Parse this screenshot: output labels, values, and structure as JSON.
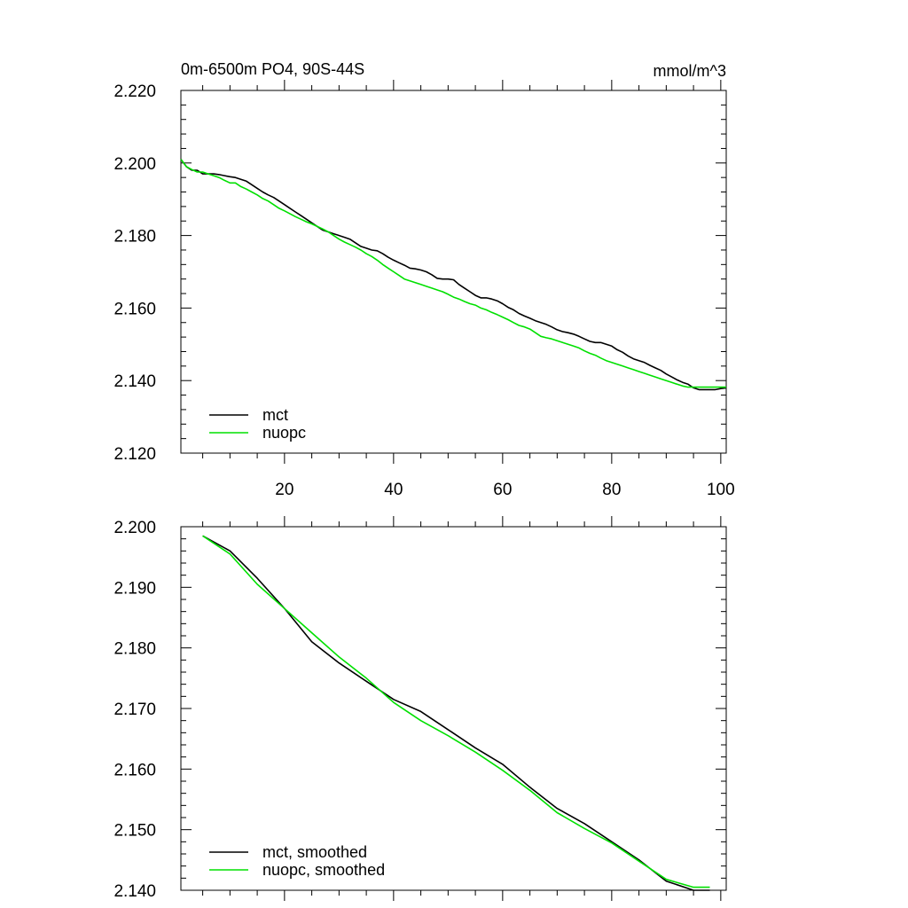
{
  "chart_data": [
    {
      "type": "line",
      "title": "0m-6500m PO4, 90S-44S",
      "units": "mmol/m^3",
      "xlabel": "",
      "ylabel": "",
      "xlim": [
        1,
        101
      ],
      "ylim": [
        2.12,
        2.22
      ],
      "xticks": [
        20,
        40,
        60,
        80,
        100
      ],
      "xtick_labels": [
        "20",
        "40",
        "60",
        "80",
        "100"
      ],
      "yticks": [
        2.12,
        2.14,
        2.16,
        2.18,
        2.2,
        2.22
      ],
      "ytick_labels": [
        "2.120",
        "2.140",
        "2.160",
        "2.180",
        "2.200",
        "2.220"
      ],
      "legend_position": "bottom-left",
      "series": [
        {
          "name": "mct",
          "color": "#000000",
          "x": [
            1,
            2,
            3,
            4,
            5,
            6,
            7,
            8,
            9,
            10,
            11,
            12,
            13,
            14,
            15,
            16,
            17,
            18,
            19,
            20,
            21,
            22,
            23,
            24,
            25,
            26,
            27,
            28,
            29,
            30,
            31,
            32,
            33,
            34,
            35,
            36,
            37,
            38,
            39,
            40,
            41,
            42,
            43,
            44,
            45,
            46,
            47,
            48,
            49,
            50,
            51,
            52,
            53,
            54,
            55,
            56,
            57,
            58,
            59,
            60,
            61,
            62,
            63,
            64,
            65,
            66,
            67,
            68,
            69,
            70,
            71,
            72,
            73,
            74,
            75,
            76,
            77,
            78,
            79,
            80,
            81,
            82,
            83,
            84,
            85,
            86,
            87,
            88,
            89,
            90,
            91,
            92,
            93,
            94,
            95,
            96,
            97,
            98,
            99,
            100,
            101
          ],
          "values": [
            2.201,
            2.199,
            2.198,
            2.198,
            2.197,
            2.197,
            2.197,
            2.1968,
            2.1965,
            2.1962,
            2.196,
            2.1955,
            2.195,
            2.194,
            2.193,
            2.192,
            2.1912,
            2.1905,
            2.1895,
            2.1885,
            2.1875,
            2.1865,
            2.1855,
            2.1845,
            2.1835,
            2.1825,
            2.1815,
            2.181,
            2.1805,
            2.18,
            2.1795,
            2.179,
            2.178,
            2.177,
            2.1765,
            2.176,
            2.1758,
            2.175,
            2.174,
            2.1732,
            2.1725,
            2.1718,
            2.171,
            2.1708,
            2.1705,
            2.17,
            2.1692,
            2.1682,
            2.168,
            2.168,
            2.1678,
            2.1665,
            2.1655,
            2.1645,
            2.1635,
            2.1628,
            2.1628,
            2.1625,
            2.162,
            2.1612,
            2.1602,
            2.1595,
            2.1585,
            2.1578,
            2.1572,
            2.1565,
            2.156,
            2.1555,
            2.1548,
            2.154,
            2.1535,
            2.1532,
            2.1528,
            2.1522,
            2.1515,
            2.1508,
            2.1505,
            2.1505,
            2.15,
            2.1495,
            2.1485,
            2.1478,
            2.1468,
            2.146,
            2.1455,
            2.145,
            2.1442,
            2.1435,
            2.1428,
            2.1418,
            2.141,
            2.1402,
            2.1395,
            2.139,
            2.138,
            2.1375,
            2.1375,
            2.1375,
            2.1375,
            2.1378,
            2.138
          ]
        },
        {
          "name": "nuopc",
          "color": "#00e000",
          "x": [
            1,
            2,
            3,
            4,
            5,
            6,
            7,
            8,
            9,
            10,
            11,
            12,
            13,
            14,
            15,
            16,
            17,
            18,
            19,
            20,
            21,
            22,
            23,
            24,
            25,
            26,
            27,
            28,
            29,
            30,
            31,
            32,
            33,
            34,
            35,
            36,
            37,
            38,
            39,
            40,
            41,
            42,
            43,
            44,
            45,
            46,
            47,
            48,
            49,
            50,
            51,
            52,
            53,
            54,
            55,
            56,
            57,
            58,
            59,
            60,
            61,
            62,
            63,
            64,
            65,
            66,
            67,
            68,
            69,
            70,
            71,
            72,
            73,
            74,
            75,
            76,
            77,
            78,
            79,
            80,
            81,
            82,
            83,
            84,
            85,
            86,
            87,
            88,
            89,
            90,
            91,
            92,
            93,
            94,
            95,
            96,
            97,
            98,
            99,
            100,
            101
          ],
          "values": [
            2.201,
            2.199,
            2.1982,
            2.1975,
            2.1975,
            2.197,
            2.1965,
            2.196,
            2.1952,
            2.1945,
            2.1945,
            2.1935,
            2.1928,
            2.192,
            2.1912,
            2.1902,
            2.1895,
            2.1885,
            2.1875,
            2.1868,
            2.186,
            2.1852,
            2.1845,
            2.1838,
            2.1832,
            2.1825,
            2.1818,
            2.181,
            2.18,
            2.179,
            2.1782,
            2.1775,
            2.1768,
            2.176,
            2.175,
            2.1742,
            2.1732,
            2.172,
            2.171,
            2.17,
            2.169,
            2.168,
            2.1675,
            2.167,
            2.1665,
            2.166,
            2.1655,
            2.165,
            2.1645,
            2.1638,
            2.163,
            2.1625,
            2.1618,
            2.1612,
            2.1608,
            2.16,
            2.1595,
            2.1588,
            2.1582,
            2.1575,
            2.1568,
            2.156,
            2.1552,
            2.1548,
            2.1542,
            2.1532,
            2.1522,
            2.1518,
            2.1515,
            2.151,
            2.1505,
            2.15,
            2.1495,
            2.149,
            2.1482,
            2.1475,
            2.147,
            2.1462,
            2.1455,
            2.145,
            2.1445,
            2.144,
            2.1435,
            2.143,
            2.1425,
            2.142,
            2.1415,
            2.141,
            2.1405,
            2.14,
            2.1395,
            2.139,
            2.1385,
            2.1382,
            2.1382,
            2.1382,
            2.1382,
            2.1382,
            2.1382,
            2.1382,
            2.1382
          ]
        }
      ]
    },
    {
      "type": "line",
      "title": "",
      "xlabel": "",
      "ylabel": "",
      "xlim": [
        1,
        101
      ],
      "ylim": [
        2.14,
        2.2
      ],
      "xticks": [
        20,
        40,
        60,
        80,
        100
      ],
      "xtick_labels": [
        "",
        "",
        "",
        "",
        ""
      ],
      "yticks": [
        2.14,
        2.15,
        2.16,
        2.17,
        2.18,
        2.19,
        2.2
      ],
      "ytick_labels": [
        "2.140",
        "2.150",
        "2.160",
        "2.170",
        "2.180",
        "2.190",
        "2.200"
      ],
      "legend_position": "bottom-left",
      "series": [
        {
          "name": "mct, smoothed",
          "color": "#000000",
          "x": [
            5,
            10,
            15,
            20,
            25,
            30,
            35,
            40,
            45,
            50,
            55,
            60,
            65,
            70,
            75,
            80,
            85,
            90,
            95,
            98
          ],
          "values": [
            2.1985,
            2.196,
            2.1915,
            2.1865,
            2.181,
            2.1775,
            2.1745,
            2.1715,
            2.1695,
            2.1665,
            2.1635,
            2.1608,
            2.157,
            2.1535,
            2.151,
            2.148,
            2.145,
            2.1415,
            2.14,
            2.14
          ]
        },
        {
          "name": "nuopc, smoothed",
          "color": "#00e000",
          "x": [
            5,
            10,
            15,
            20,
            25,
            30,
            35,
            40,
            45,
            50,
            55,
            60,
            65,
            70,
            75,
            80,
            85,
            90,
            95,
            98
          ],
          "values": [
            2.1985,
            2.1955,
            2.1905,
            2.1865,
            2.1825,
            2.1785,
            2.175,
            2.171,
            2.168,
            2.1655,
            2.1628,
            2.1598,
            2.1565,
            2.1528,
            2.1502,
            2.1478,
            2.1448,
            2.1418,
            2.1405,
            2.1405
          ]
        }
      ]
    }
  ]
}
